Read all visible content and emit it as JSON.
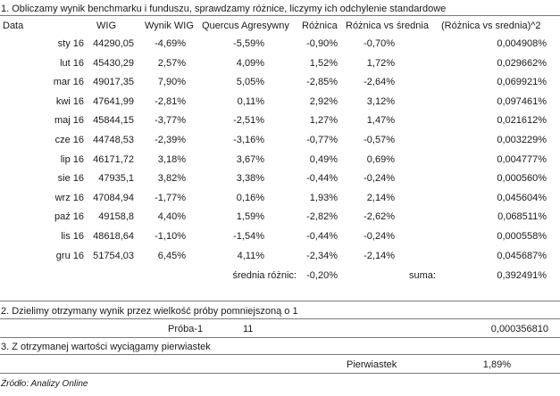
{
  "section1": {
    "title": "1. Obliczamy wynik benchmarku i funduszu, sprawdzamy różnice, liczymy ich odchylenie standardowe",
    "headers": [
      "Data",
      "WIG",
      "Wynik WIG",
      "Quercus Agresywny",
      "Różnica",
      "Różnica vs średnia",
      "(Różnica vs srednia)^2"
    ],
    "rows": [
      [
        "sty 16",
        "44290,05",
        "-4,69%",
        "-5,59%",
        "-0,90%",
        "-0,70%",
        "0,004908%"
      ],
      [
        "lut 16",
        "45430,29",
        "2,57%",
        "4,09%",
        "1,52%",
        "1,72%",
        "0,029662%"
      ],
      [
        "mar 16",
        "49017,35",
        "7,90%",
        "5,05%",
        "-2,85%",
        "-2,64%",
        "0,069921%"
      ],
      [
        "kwi 16",
        "47641,99",
        "-2,81%",
        "0,11%",
        "2,92%",
        "3,12%",
        "0,097461%"
      ],
      [
        "maj 16",
        "45844,15",
        "-3,77%",
        "-2,51%",
        "1,27%",
        "1,47%",
        "0,021612%"
      ],
      [
        "cze 16",
        "44748,53",
        "-2,39%",
        "-3,16%",
        "-0,77%",
        "-0,57%",
        "0,003229%"
      ],
      [
        "lip 16",
        "46171,72",
        "3,18%",
        "3,67%",
        "0,49%",
        "0,69%",
        "0,004777%"
      ],
      [
        "sie 16",
        "47935,1",
        "3,82%",
        "3,38%",
        "-0,44%",
        "-0,24%",
        "0,000560%"
      ],
      [
        "wrz 16",
        "47084,94",
        "-1,77%",
        "0,16%",
        "1,93%",
        "2,14%",
        "0,045604%"
      ],
      [
        "paź 16",
        "49158,8",
        "4,40%",
        "1,59%",
        "-2,82%",
        "-2,62%",
        "0,068511%"
      ],
      [
        "lis 16",
        "48618,64",
        "-1,10%",
        "-1,54%",
        "-0,44%",
        "-0,24%",
        "0,000558%"
      ],
      [
        "gru 16",
        "51754,03",
        "6,45%",
        "4,11%",
        "-2,34%",
        "-2,14%",
        "0,045687%"
      ]
    ],
    "summary": {
      "mean_label": "średnia różnic:",
      "mean_value": "-0,20%",
      "sum_label": "suma:",
      "sum_value": "0,392491%"
    }
  },
  "section2": {
    "title": "2. Dzielimy otrzymany wynik przez wielkość próby pomniejszoną o 1",
    "label": "Próba-1",
    "n": "11",
    "result": "0,000356810"
  },
  "section3": {
    "title": "3. Z otrzymanej wartości wyciągamy pierwiastek",
    "label": "Pierwiastek",
    "result": "1,89%"
  },
  "source": "Źródło: Analizy Online"
}
